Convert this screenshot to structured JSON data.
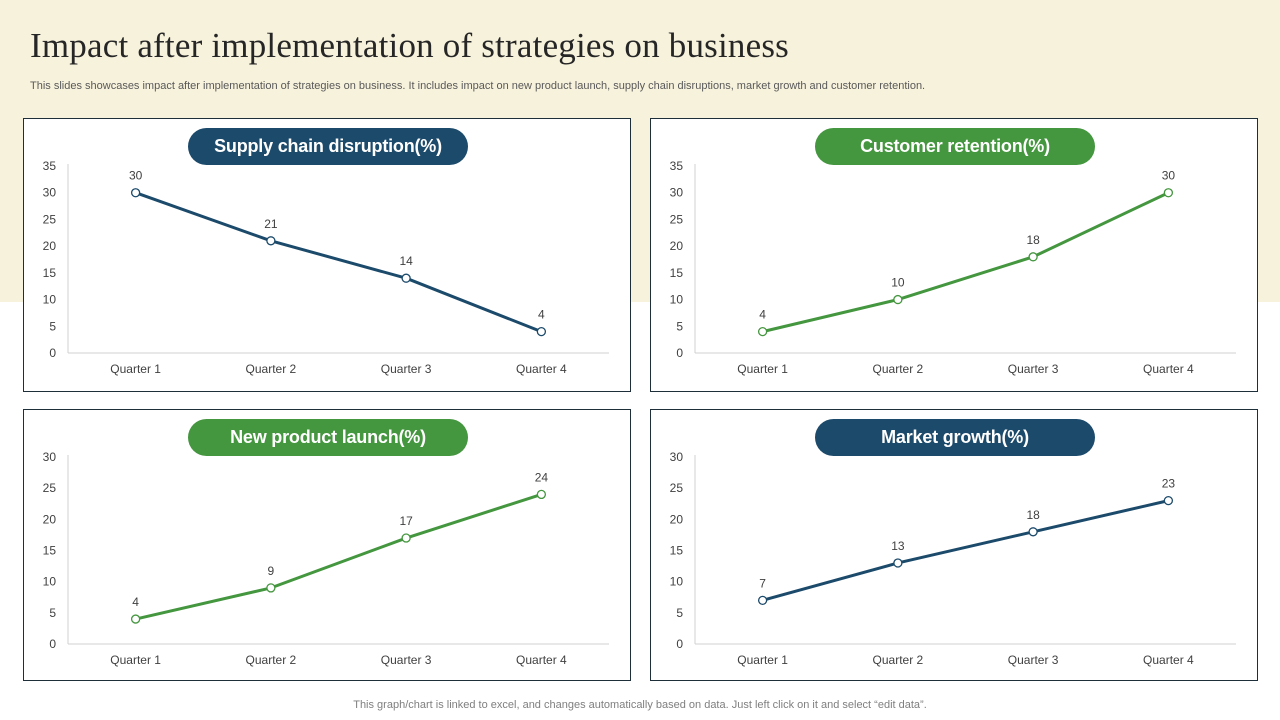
{
  "title": "Impact after implementation of strategies on business",
  "subtitle": "This slides showcases impact after implementation of strategies on business. It includes impact on new product launch, supply chain disruptions, market growth and customer retention.",
  "footer": "This graph/chart is linked to excel,  and changes automatically based on data. Just left click on it and select “edit data”.",
  "colors": {
    "navy": "#1c4a6b",
    "green": "#44963f",
    "axis": "#d0d0d0",
    "text": "#404040"
  },
  "chart_data": [
    {
      "type": "line",
      "title": "Supply chain disruption(%)",
      "color": "#1c4a6b",
      "categories": [
        "Quarter 1",
        "Quarter 2",
        "Quarter 3",
        "Quarter 4"
      ],
      "values": [
        30,
        21,
        14,
        4
      ],
      "ylim": [
        0,
        35
      ],
      "yticks": [
        0,
        5,
        10,
        15,
        20,
        25,
        30,
        35
      ]
    },
    {
      "type": "line",
      "title": "Customer retention(%)",
      "color": "#44963f",
      "categories": [
        "Quarter 1",
        "Quarter 2",
        "Quarter 3",
        "Quarter 4"
      ],
      "values": [
        4,
        10,
        18,
        30
      ],
      "ylim": [
        0,
        35
      ],
      "yticks": [
        0,
        5,
        10,
        15,
        20,
        25,
        30,
        35
      ]
    },
    {
      "type": "line",
      "title": "New product launch(%)",
      "color": "#44963f",
      "categories": [
        "Quarter 1",
        "Quarter 2",
        "Quarter 3",
        "Quarter 4"
      ],
      "values": [
        4,
        9,
        17,
        24
      ],
      "ylim": [
        0,
        30
      ],
      "yticks": [
        0,
        5,
        10,
        15,
        20,
        25,
        30
      ]
    },
    {
      "type": "line",
      "title": "Market growth(%)",
      "color": "#1c4a6b",
      "categories": [
        "Quarter 1",
        "Quarter 2",
        "Quarter 3",
        "Quarter 4"
      ],
      "values": [
        7,
        13,
        18,
        23
      ],
      "ylim": [
        0,
        30
      ],
      "yticks": [
        0,
        5,
        10,
        15,
        20,
        25,
        30
      ]
    }
  ]
}
